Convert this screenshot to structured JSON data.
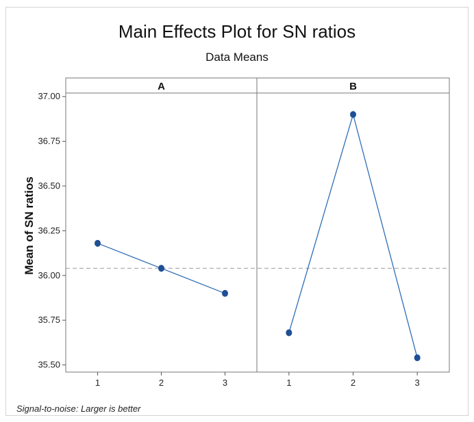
{
  "chart_data": {
    "type": "line",
    "title": "Main Effects Plot for SN ratios",
    "subtitle": "Data Means",
    "ylabel": "Mean of SN ratios",
    "ylim": [
      35.46,
      37.02
    ],
    "yticks": [
      35.5,
      35.75,
      36.0,
      36.25,
      36.5,
      36.75,
      37.0
    ],
    "ytick_labels": [
      "35.50",
      "35.75",
      "36.00",
      "36.25",
      "36.50",
      "36.75",
      "37.00"
    ],
    "reference_line": 36.04,
    "footnote": "Signal-to-noise: Larger is better",
    "panels": [
      {
        "name": "A",
        "categories": [
          "1",
          "2",
          "3"
        ],
        "values": [
          36.18,
          36.04,
          35.9
        ]
      },
      {
        "name": "B",
        "categories": [
          "1",
          "2",
          "3"
        ],
        "values": [
          35.68,
          36.9,
          35.54
        ]
      }
    ],
    "colors": {
      "series": "#2f6db5",
      "marker": "#1f4f95",
      "reference": "#9a9a9a"
    }
  }
}
